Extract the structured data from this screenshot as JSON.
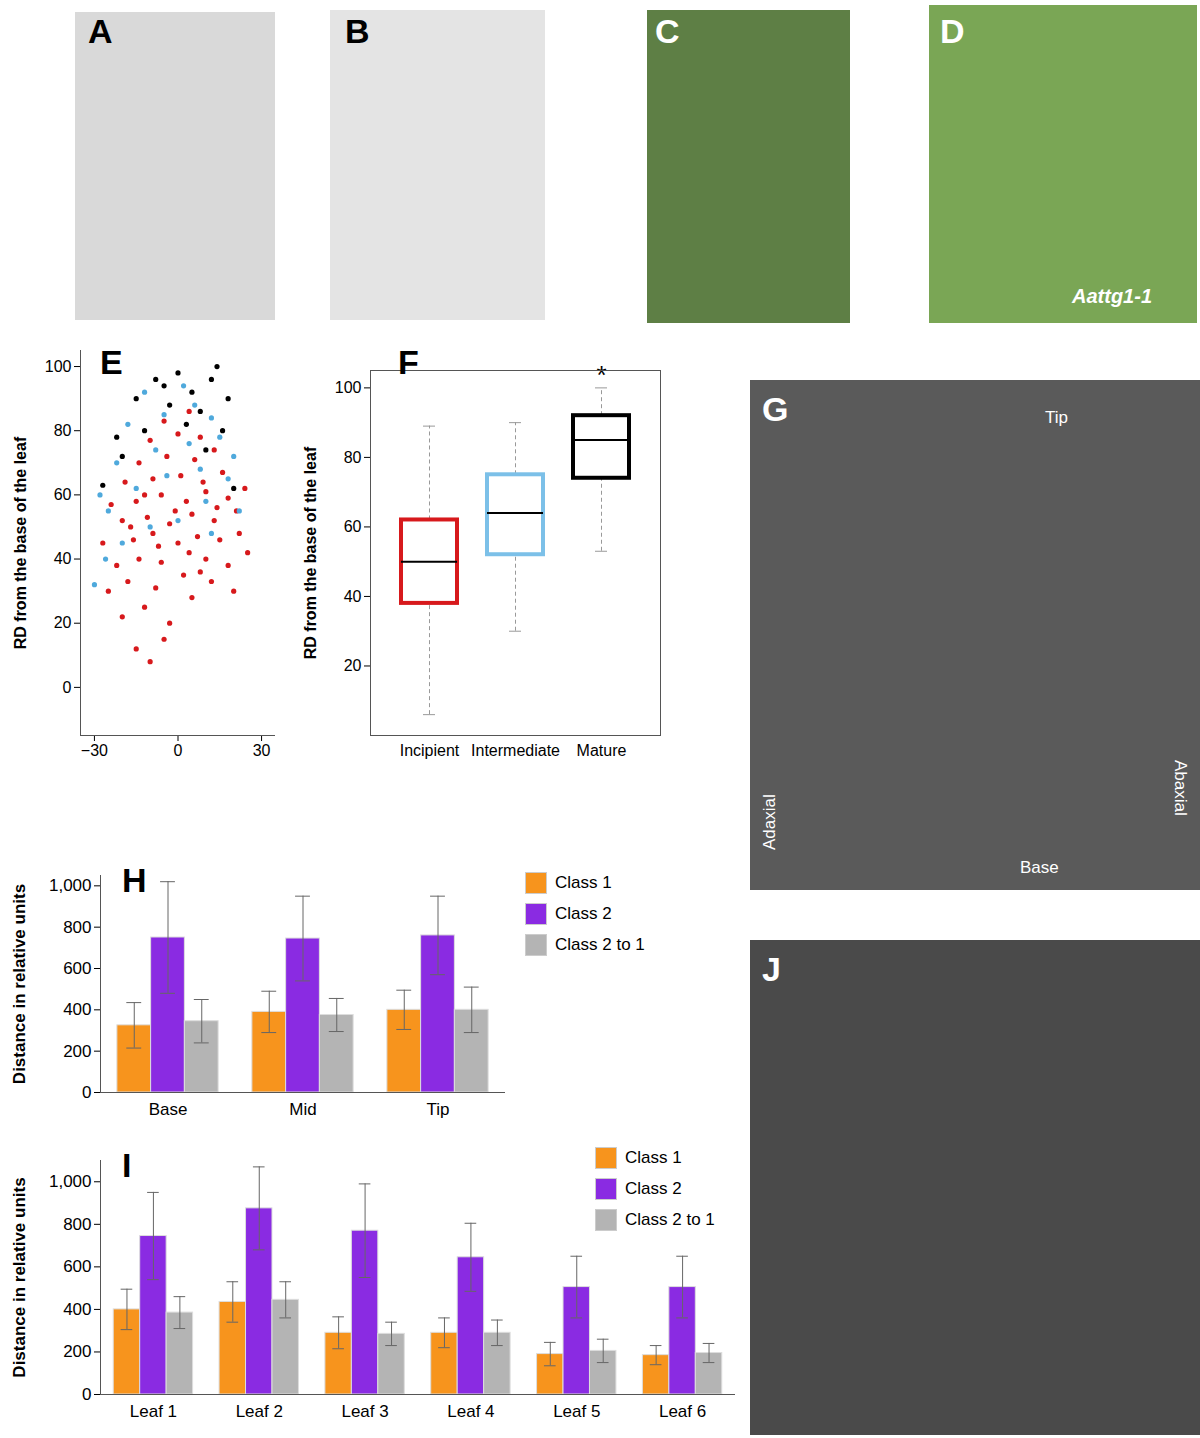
{
  "chart_data": [
    {
      "type": "scatter",
      "title": "E",
      "ylabel": "RD from the base of the leaf",
      "xlim": [
        -35,
        35
      ],
      "xticks": [
        -30,
        0,
        30
      ],
      "ylim": [
        -15,
        105
      ],
      "yticks": [
        0,
        20,
        40,
        60,
        80,
        100
      ],
      "grid": false,
      "series": [
        {
          "color": "#d7191c",
          "x": [
            -15,
            -10,
            -5,
            -20,
            -12,
            -3,
            5,
            -25,
            -18,
            -8,
            2,
            12,
            20,
            -22,
            -14,
            -6,
            4,
            10,
            18,
            25,
            -27,
            -16,
            -9,
            0,
            7,
            15,
            22,
            -20,
            -11,
            -3,
            5,
            13,
            21,
            -24,
            -15,
            -6,
            3,
            10,
            18,
            24,
            -19,
            -9,
            1,
            9,
            16,
            -14,
            -4,
            6,
            13,
            -10,
            0,
            8,
            -5,
            4,
            -12,
            -1,
            8,
            -7,
            14,
            -17
          ],
          "values": [
            12,
            8,
            15,
            22,
            25,
            20,
            28,
            30,
            33,
            31,
            35,
            33,
            30,
            38,
            40,
            39,
            42,
            40,
            38,
            42,
            45,
            46,
            48,
            45,
            47,
            46,
            48,
            52,
            53,
            51,
            54,
            52,
            55,
            57,
            58,
            60,
            58,
            61,
            59,
            62,
            64,
            65,
            66,
            64,
            67,
            70,
            72,
            71,
            74,
            77,
            79,
            78,
            83,
            86,
            60,
            55,
            36,
            44,
            56,
            50
          ]
        },
        {
          "color": "#4fa9dc",
          "x": [
            -30,
            -26,
            -20,
            -10,
            0,
            12,
            22,
            -28,
            -15,
            -4,
            8,
            18,
            -22,
            -8,
            4,
            15,
            -18,
            -5,
            6,
            12,
            -12,
            2,
            -25,
            20,
            10
          ],
          "values": [
            32,
            40,
            45,
            50,
            52,
            48,
            55,
            60,
            62,
            66,
            68,
            65,
            70,
            74,
            76,
            78,
            82,
            85,
            88,
            84,
            92,
            94,
            55,
            72,
            58
          ]
        },
        {
          "color": "#000000",
          "x": [
            -27,
            -20,
            -12,
            -3,
            5,
            12,
            -8,
            0,
            8,
            16,
            20,
            -15,
            14,
            -22,
            3,
            18,
            -5,
            10
          ],
          "values": [
            63,
            72,
            80,
            88,
            92,
            96,
            96,
            98,
            86,
            80,
            62,
            90,
            100,
            78,
            82,
            90,
            94,
            74
          ]
        }
      ]
    },
    {
      "type": "box",
      "title": "F",
      "ylabel": "RD from the base of the leaf",
      "categories": [
        "Incipient",
        "Intermediate",
        "Mature"
      ],
      "colors": [
        "#d7191c",
        "#7cc0e8",
        "#000000"
      ],
      "whisker_low": [
        6,
        30,
        53
      ],
      "q1": [
        38,
        52,
        74
      ],
      "median": [
        50,
        64,
        85
      ],
      "q3": [
        62,
        75,
        92
      ],
      "whisker_high": [
        89,
        90,
        100
      ],
      "ylim": [
        0,
        105
      ],
      "yticks": [
        20,
        40,
        60,
        80,
        100
      ],
      "grid": false,
      "annotations": [
        {
          "text": "*",
          "category": "Mature"
        }
      ]
    },
    {
      "type": "bar",
      "title": "H",
      "ylabel": "Distance in relative units",
      "categories": [
        "Base",
        "Mid",
        "Tip"
      ],
      "series": [
        {
          "name": "Class 1",
          "color": "#f7941d",
          "values": [
            325,
            390,
            400
          ],
          "errors": [
            110,
            100,
            95
          ]
        },
        {
          "name": "Class 2",
          "color": "#8a2be2",
          "values": [
            750,
            745,
            760
          ],
          "errors": [
            270,
            205,
            190
          ]
        },
        {
          "name": "Class 2 to 1",
          "color": "#b4b4b4",
          "values": [
            345,
            375,
            400
          ],
          "errors": [
            105,
            80,
            110
          ]
        }
      ],
      "ylim": [
        0,
        1050
      ],
      "yticks": [
        0,
        200,
        400,
        600,
        800,
        1000
      ],
      "grid": false,
      "legend": "right"
    },
    {
      "type": "bar",
      "title": "I",
      "ylabel": "Distance in relative units",
      "categories": [
        "Leaf 1",
        "Leaf 2",
        "Leaf 3",
        "Leaf 4",
        "Leaf 5",
        "Leaf 6"
      ],
      "series": [
        {
          "name": "Class 1",
          "color": "#f7941d",
          "values": [
            400,
            435,
            290,
            290,
            190,
            185
          ],
          "errors": [
            95,
            95,
            75,
            70,
            55,
            45
          ]
        },
        {
          "name": "Class 2",
          "color": "#8a2be2",
          "values": [
            745,
            875,
            770,
            645,
            505,
            505
          ],
          "errors": [
            205,
            195,
            220,
            160,
            145,
            145
          ]
        },
        {
          "name": "Class 2 to 1",
          "color": "#b4b4b4",
          "values": [
            385,
            445,
            285,
            290,
            205,
            195
          ],
          "errors": [
            75,
            85,
            55,
            60,
            55,
            45
          ]
        }
      ],
      "ylim": [
        0,
        1100
      ],
      "yticks": [
        0,
        200,
        400,
        600,
        800,
        1000
      ],
      "grid": false,
      "legend": "top-right"
    }
  ],
  "images": [
    {
      "label": "A"
    },
    {
      "label": "B"
    },
    {
      "label": "C"
    },
    {
      "label": "D",
      "annotations": [
        "Aattg1-1"
      ]
    },
    {
      "label": "G",
      "annotations": [
        "Tip",
        "Adaxial",
        "Abaxial",
        "Base"
      ]
    },
    {
      "label": "J"
    }
  ]
}
